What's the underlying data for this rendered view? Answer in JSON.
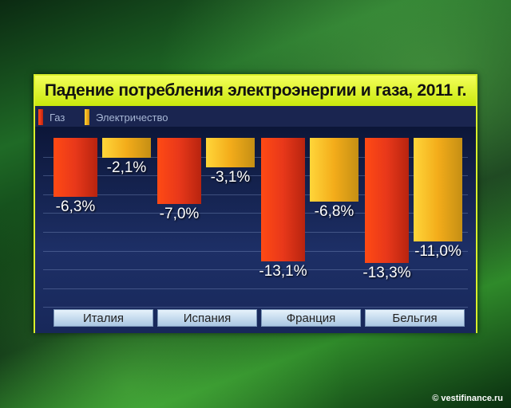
{
  "chart_data": {
    "type": "bar",
    "title": "Падение потребления электроэнергии и газа, 2011 г.",
    "categories": [
      "Италия",
      "Испания",
      "Франция",
      "Бельгия"
    ],
    "series": [
      {
        "name": "Газ",
        "values": [
          -6.3,
          -7.0,
          -13.1,
          -13.3
        ],
        "labels": [
          "-6,3%",
          "-7,0%",
          "-13,1%",
          "-13,3%"
        ],
        "color": "#e8381a"
      },
      {
        "name": "Электричество",
        "values": [
          -2.1,
          -3.1,
          -6.8,
          -11.0
        ],
        "labels": [
          "-2,1%",
          "-3,1%",
          "-6,8%",
          "-11,0%"
        ],
        "color": "#f3ac1a"
      }
    ],
    "ylim": [
      -18,
      0
    ],
    "grid": true,
    "legend": "top-left"
  },
  "watermark": "© vestifinance.ru"
}
